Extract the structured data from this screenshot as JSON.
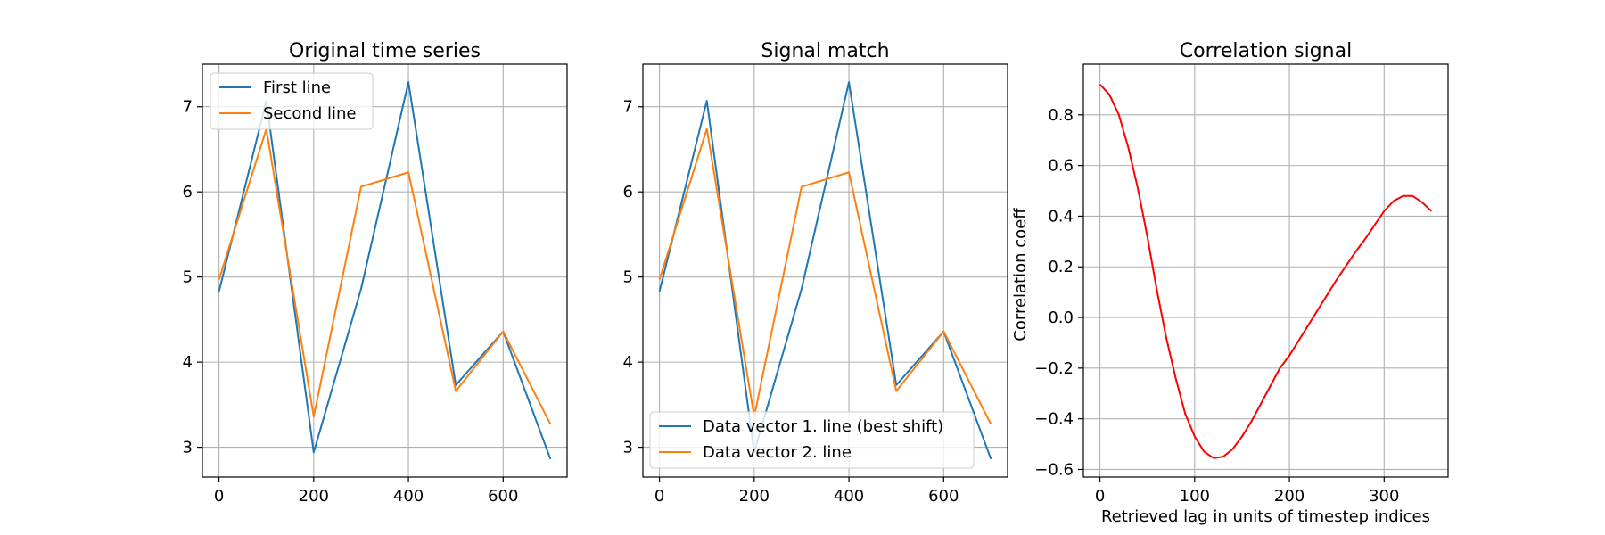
{
  "chart_data": [
    {
      "type": "line",
      "title": "Original time series",
      "xlabel": "",
      "ylabel": "",
      "xlim": [
        -35,
        735
      ],
      "ylim": [
        2.65,
        7.5
      ],
      "xticks": [
        0,
        200,
        400,
        600
      ],
      "yticks": [
        3,
        4,
        5,
        6,
        7
      ],
      "grid": true,
      "legend": "upper left",
      "series": [
        {
          "name": "First line",
          "color": "#1f77b4",
          "x": [
            0,
            100,
            200,
            300,
            400,
            500,
            600,
            700
          ],
          "y": [
            4.83,
            7.07,
            2.94,
            4.86,
            7.29,
            3.73,
            4.36,
            2.86
          ]
        },
        {
          "name": "Second line",
          "color": "#ff7f0e",
          "x": [
            0,
            100,
            200,
            300,
            400,
            500,
            600,
            700
          ],
          "y": [
            4.97,
            6.74,
            3.36,
            6.06,
            6.23,
            3.66,
            4.36,
            3.27
          ]
        }
      ]
    },
    {
      "type": "line",
      "title": "Signal match",
      "xlabel": "",
      "ylabel": "",
      "xlim": [
        -35,
        735
      ],
      "ylim": [
        2.65,
        7.5
      ],
      "xticks": [
        0,
        200,
        400,
        600
      ],
      "yticks": [
        3,
        4,
        5,
        6,
        7
      ],
      "grid": true,
      "legend": "lower left",
      "series": [
        {
          "name": "Data vector 1. line (best shift)",
          "color": "#1f77b4",
          "x": [
            0,
            100,
            200,
            300,
            400,
            500,
            600,
            700
          ],
          "y": [
            4.83,
            7.07,
            2.94,
            4.86,
            7.29,
            3.73,
            4.36,
            2.86
          ]
        },
        {
          "name": "Data vector 2. line",
          "color": "#ff7f0e",
          "x": [
            0,
            100,
            200,
            300,
            400,
            500,
            600,
            700
          ],
          "y": [
            4.97,
            6.74,
            3.36,
            6.06,
            6.23,
            3.66,
            4.36,
            3.27
          ]
        }
      ]
    },
    {
      "type": "line",
      "title": "Correlation signal",
      "xlabel": "Retrieved lag in units of timestep indices",
      "ylabel": "Correlation coeff",
      "xlim": [
        -17.5,
        367.5
      ],
      "ylim": [
        -0.63,
        1.0
      ],
      "xticks": [
        0,
        100,
        200,
        300
      ],
      "yticks": [
        -0.6,
        -0.4,
        -0.2,
        0.0,
        0.2,
        0.4,
        0.6,
        0.8
      ],
      "grid": true,
      "legend": "",
      "series": [
        {
          "name": "",
          "color": "#ff0000",
          "x": [
            0,
            10,
            20,
            30,
            40,
            50,
            60,
            70,
            80,
            90,
            100,
            110,
            120,
            130,
            140,
            150,
            160,
            170,
            180,
            190,
            200,
            210,
            220,
            230,
            240,
            250,
            260,
            270,
            280,
            290,
            300,
            310,
            320,
            330,
            340,
            350
          ],
          "y": [
            0.92,
            0.88,
            0.8,
            0.67,
            0.51,
            0.32,
            0.11,
            -0.08,
            -0.24,
            -0.38,
            -0.47,
            -0.53,
            -0.555,
            -0.55,
            -0.52,
            -0.47,
            -0.41,
            -0.34,
            -0.27,
            -0.2,
            -0.15,
            -0.09,
            -0.03,
            0.03,
            0.09,
            0.15,
            0.205,
            0.26,
            0.31,
            0.365,
            0.42,
            0.46,
            0.48,
            0.48,
            0.455,
            0.42
          ]
        }
      ]
    }
  ]
}
